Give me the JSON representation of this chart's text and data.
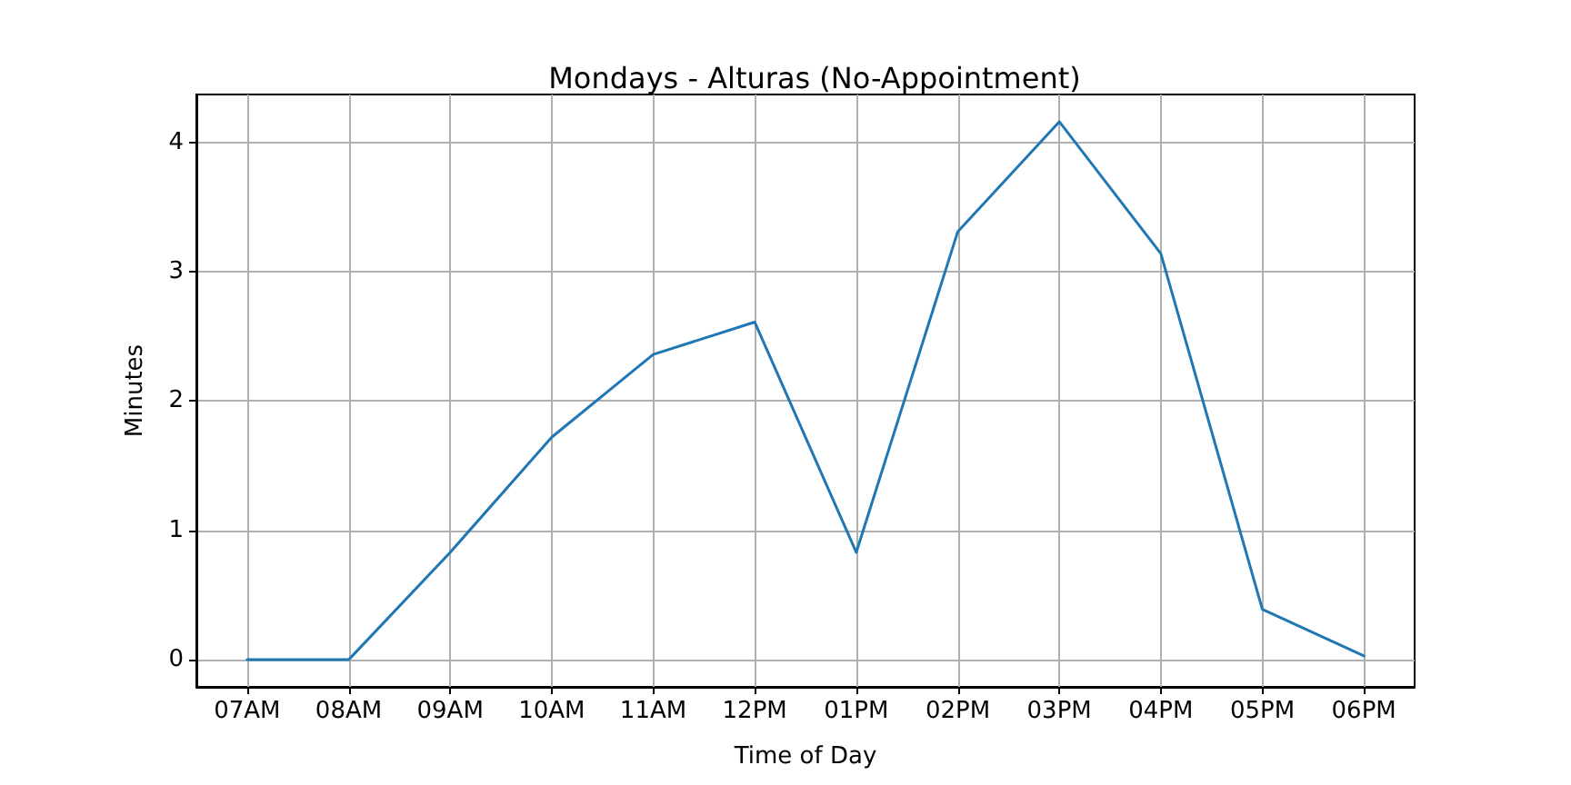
{
  "chart_data": {
    "type": "line",
    "title": "Mondays - Alturas (No-Appointment)",
    "xlabel": "Time of Day",
    "ylabel": "Minutes",
    "categories": [
      "07AM",
      "08AM",
      "09AM",
      "10AM",
      "11AM",
      "12PM",
      "01PM",
      "02PM",
      "03PM",
      "04PM",
      "05PM",
      "06PM"
    ],
    "series": [
      {
        "color": "#1f77b4",
        "values": [
          0,
          0,
          0.83,
          1.72,
          2.36,
          2.61,
          0.83,
          3.31,
          4.16,
          3.14,
          0.39,
          0.03
        ]
      }
    ],
    "ylim": [
      -0.21,
      4.37
    ],
    "yticks": [
      0,
      1,
      2,
      3,
      4
    ],
    "grid": true,
    "marker": "none",
    "line_style": "solid"
  }
}
